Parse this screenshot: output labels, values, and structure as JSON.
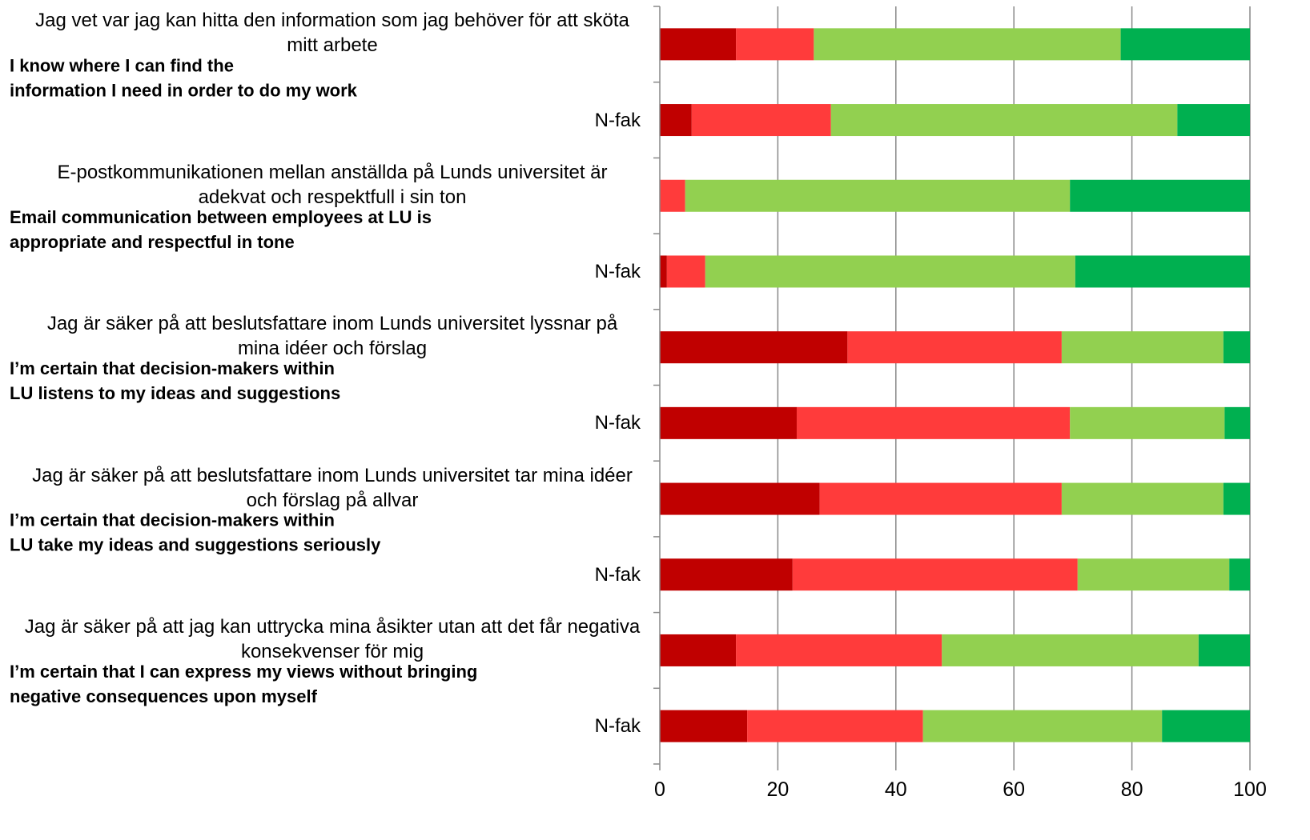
{
  "chart_data": {
    "type": "stacked_bar_horizontal",
    "categories": [
      "Jag vet var jag kan hitta den information som jag behöver för att sköta mitt arbete",
      "N-fak",
      "E-postkommunikationen mellan anställda på Lunds universitet är adekvat och respektfull i sin ton",
      "N-fak",
      "Jag är säker på att beslutsfattare inom Lunds universitet lyssnar på mina idéer och förslag",
      "N-fak",
      "Jag är säker på att beslutsfattare inom Lunds universitet tar mina idéer och förslag på allvar",
      "N-fak",
      "Jag är säker på att jag kan uttrycka mina åsikter utan att det får negativa konsekvenser för mig",
      "N-fak"
    ],
    "series": [
      {
        "color": "#c00000",
        "values": [
          12.9,
          5.4,
          0,
          1.2,
          31.8,
          23.2,
          27.1,
          22.5,
          12.9,
          14.8
        ]
      },
      {
        "color": "#ff3b3b",
        "values": [
          13.2,
          23.6,
          4.3,
          6.5,
          36.3,
          46.3,
          41,
          48.3,
          34.9,
          29.8
        ]
      },
      {
        "color": "#92d050",
        "values": [
          52,
          58.7,
          65.2,
          62.7,
          27.4,
          26.2,
          27.4,
          25.7,
          43.5,
          40.5
        ]
      },
      {
        "color": "#00b050",
        "values": [
          21.9,
          12.3,
          30.5,
          29.6,
          4.5,
          4.3,
          4.5,
          3.5,
          8.7,
          14.9
        ]
      }
    ],
    "annotations": [
      [
        "I know where I can find the",
        "information I need in order to do my work"
      ],
      [
        "Email communication between employees at LU is",
        "appropriate and respectful in tone"
      ],
      [
        "I’m certain that decision-makers within",
        "LU listens to my ideas and suggestions"
      ],
      [
        "I’m certain that decision-makers within",
        "LU take my ideas and suggestions seriously"
      ],
      [
        "I’m certain that I can express my views without bringing",
        "negative consequences upon myself"
      ]
    ],
    "xlim": [
      0,
      100
    ],
    "xticks": [
      0,
      20,
      40,
      60,
      80,
      100
    ],
    "grid": true
  }
}
